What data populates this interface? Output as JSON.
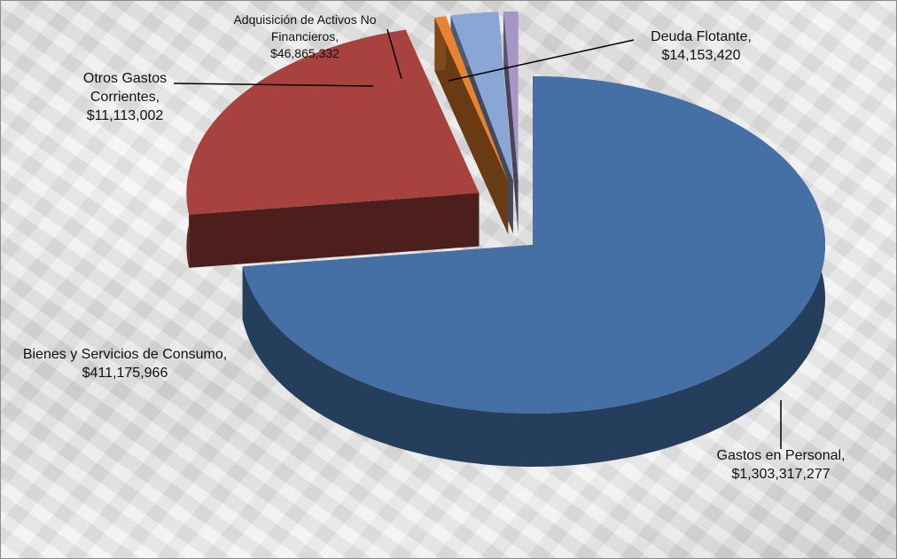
{
  "chart_data": {
    "type": "pie3d",
    "categories": [
      "Gastos en Personal,",
      "Bienes y Servicios de Consumo,",
      "Otros Gastos Corrientes,",
      "Adquisición de Activos No Financieros,",
      "Deuda Flotante,"
    ],
    "values": [
      1303317277,
      411175966,
      11113002,
      46865332,
      14153420
    ],
    "value_labels": [
      "$1,303,317,277",
      "$411,175,966",
      "$11,113,002",
      "$46,865,332",
      "$14,153,420"
    ],
    "colors": [
      "#4470a5",
      "#a8423f",
      "#e8842f",
      "#8aa6d4",
      "#a596c6"
    ]
  }
}
